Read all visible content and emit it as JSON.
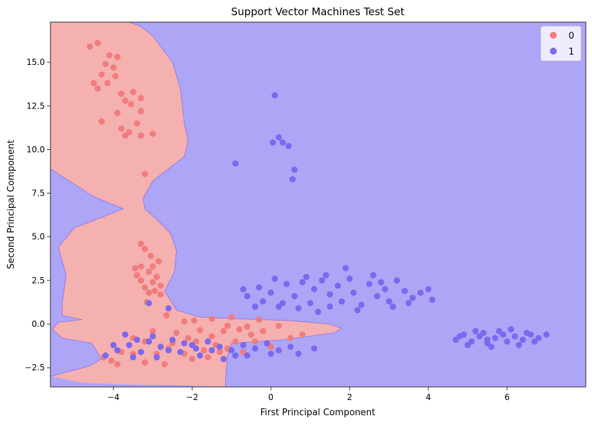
{
  "chart_data": {
    "type": "scatter",
    "title": "Support Vector Machines Test Set",
    "xlabel": "First Principal Component",
    "ylabel": "Second Principal Component",
    "xlim": [
      -5.6,
      8.0
    ],
    "ylim": [
      -3.6,
      17.3
    ],
    "xticks": [
      -4,
      -2,
      0,
      2,
      4,
      6
    ],
    "xtick_labels": [
      "−4",
      "−2",
      "0",
      "2",
      "4",
      "6"
    ],
    "yticks": [
      -2.5,
      0.0,
      2.5,
      5.0,
      7.5,
      10.0,
      12.5,
      15.0
    ],
    "ytick_labels": [
      "−2.5",
      "0.0",
      "2.5",
      "5.0",
      "7.5",
      "10.0",
      "12.5",
      "15.0"
    ],
    "grid": false,
    "legend_position": "top-right",
    "background_region_color": "#ada5f5",
    "class0_region": [
      [
        -5.6,
        17.3
      ],
      [
        -3.6,
        17.3
      ],
      [
        -3.3,
        17.05
      ],
      [
        -3.0,
        16.5
      ],
      [
        -2.5,
        15.0
      ],
      [
        -2.3,
        13.5
      ],
      [
        -2.2,
        11.5
      ],
      [
        -2.1,
        10.5
      ],
      [
        -2.2,
        9.6
      ],
      [
        -2.6,
        8.9
      ],
      [
        -3.0,
        8.2
      ],
      [
        -3.25,
        7.2
      ],
      [
        -3.2,
        6.6
      ],
      [
        -2.9,
        6.0
      ],
      [
        -2.55,
        5.2
      ],
      [
        -2.4,
        4.2
      ],
      [
        -2.45,
        3.0
      ],
      [
        -2.7,
        1.9
      ],
      [
        -2.4,
        0.8
      ],
      [
        -1.8,
        0.4
      ],
      [
        -0.8,
        0.3
      ],
      [
        0.5,
        0.2
      ],
      [
        1.5,
        0.0
      ],
      [
        1.8,
        -0.25
      ],
      [
        1.6,
        -0.5
      ],
      [
        0.3,
        -0.9
      ],
      [
        -1.0,
        -1.1
      ],
      [
        -1.1,
        -1.8
      ],
      [
        -1.15,
        -3.1
      ],
      [
        -1.15,
        -3.6
      ],
      [
        -5.6,
        -3.6
      ],
      [
        -5.6,
        -3.0
      ],
      [
        -4.6,
        -2.4
      ],
      [
        -4.3,
        -2.0
      ],
      [
        -4.55,
        -1.1
      ],
      [
        -5.3,
        -0.8
      ],
      [
        -5.55,
        -0.3
      ],
      [
        -5.4,
        0.1
      ],
      [
        -4.8,
        0.25
      ],
      [
        -5.3,
        0.5
      ],
      [
        -5.3,
        1.2
      ],
      [
        -5.2,
        2.8
      ],
      [
        -5.4,
        4.4
      ],
      [
        -5.0,
        5.5
      ],
      [
        -4.2,
        6.2
      ],
      [
        -3.75,
        6.6
      ],
      [
        -4.5,
        7.3
      ],
      [
        -5.6,
        8.9
      ]
    ],
    "class1_pocket_region": [
      [
        -5.6,
        -3.6
      ],
      [
        -5.6,
        -3.0
      ],
      [
        -4.8,
        -3.35
      ],
      [
        -3.8,
        -3.45
      ],
      [
        -2.2,
        -3.5
      ],
      [
        -1.15,
        -3.6
      ]
    ],
    "series": [
      {
        "name": "0",
        "color": "#f07c7c",
        "points": [
          [
            -4.6,
            15.9
          ],
          [
            -4.4,
            16.1
          ],
          [
            -4.1,
            15.4
          ],
          [
            -3.9,
            15.3
          ],
          [
            -4.2,
            14.9
          ],
          [
            -4.0,
            14.7
          ],
          [
            -4.3,
            14.3
          ],
          [
            -3.95,
            14.2
          ],
          [
            -4.5,
            13.8
          ],
          [
            -4.4,
            13.5
          ],
          [
            -4.15,
            13.8
          ],
          [
            -3.8,
            13.2
          ],
          [
            -3.5,
            13.3
          ],
          [
            -3.7,
            12.8
          ],
          [
            -3.3,
            12.95
          ],
          [
            -3.55,
            12.6
          ],
          [
            -3.3,
            12.2
          ],
          [
            -3.9,
            12.1
          ],
          [
            -4.3,
            11.6
          ],
          [
            -3.4,
            11.5
          ],
          [
            -3.8,
            11.2
          ],
          [
            -3.6,
            11.0
          ],
          [
            -3.3,
            10.8
          ],
          [
            -3.0,
            10.9
          ],
          [
            -3.7,
            10.8
          ],
          [
            -3.2,
            8.6
          ],
          [
            -3.3,
            4.6
          ],
          [
            -3.2,
            4.3
          ],
          [
            -3.05,
            3.9
          ],
          [
            -3.45,
            3.2
          ],
          [
            -3.3,
            3.3
          ],
          [
            -3.0,
            3.3
          ],
          [
            -2.85,
            3.6
          ],
          [
            -3.1,
            3.0
          ],
          [
            -2.9,
            2.7
          ],
          [
            -3.3,
            2.5
          ],
          [
            -3.0,
            2.4
          ],
          [
            -3.2,
            2.1
          ],
          [
            -2.8,
            2.2
          ],
          [
            -2.95,
            1.9
          ],
          [
            -2.8,
            1.7
          ],
          [
            -3.1,
            1.8
          ],
          [
            -3.4,
            2.8
          ],
          [
            -3.15,
            1.25
          ],
          [
            -2.65,
            0.5
          ],
          [
            -2.2,
            0.15
          ],
          [
            -1.95,
            0.2
          ],
          [
            -1.5,
            0.3
          ],
          [
            -1.0,
            0.4
          ],
          [
            -0.3,
            0.25
          ],
          [
            0.2,
            -0.1
          ],
          [
            -0.6,
            -0.15
          ],
          [
            -1.2,
            -0.4
          ],
          [
            -0.8,
            -0.3
          ],
          [
            -1.8,
            -0.35
          ],
          [
            -2.4,
            -0.5
          ],
          [
            -3.0,
            -0.4
          ],
          [
            -3.5,
            -0.8
          ],
          [
            -4.05,
            -2.1
          ],
          [
            -4.25,
            -1.9
          ],
          [
            -3.8,
            -1.6
          ],
          [
            -3.5,
            -1.7
          ],
          [
            -3.2,
            -2.2
          ],
          [
            -2.9,
            -1.7
          ],
          [
            -2.6,
            -1.4
          ],
          [
            -2.2,
            -1.7
          ],
          [
            -2.0,
            -2.0
          ],
          [
            -1.7,
            -1.5
          ],
          [
            -1.4,
            -1.2
          ],
          [
            -1.1,
            -1.4
          ],
          [
            -0.7,
            -1.6
          ],
          [
            -0.4,
            -1.0
          ],
          [
            0.0,
            -1.3
          ],
          [
            0.5,
            -0.8
          ],
          [
            0.8,
            -0.6
          ],
          [
            -3.9,
            -2.3
          ],
          [
            -2.7,
            -2.3
          ],
          [
            -1.6,
            -1.9
          ],
          [
            -0.9,
            -1.0
          ],
          [
            -2.1,
            -0.8
          ],
          [
            -1.5,
            -0.7
          ],
          [
            -0.2,
            -0.4
          ],
          [
            -1.1,
            -0.1
          ],
          [
            -1.9,
            -1.0
          ],
          [
            -2.5,
            -1.1
          ],
          [
            -3.2,
            -1.0
          ],
          [
            -0.5,
            -0.6
          ],
          [
            -1.3,
            -1.6
          ]
        ]
      },
      {
        "name": "1",
        "color": "#7b68ee",
        "points": [
          [
            0.1,
            13.1
          ],
          [
            0.2,
            10.7
          ],
          [
            0.05,
            10.4
          ],
          [
            0.3,
            10.4
          ],
          [
            0.45,
            10.2
          ],
          [
            -0.9,
            9.2
          ],
          [
            0.6,
            8.85
          ],
          [
            0.55,
            8.3
          ],
          [
            -3.1,
            1.2
          ],
          [
            -2.6,
            0.9
          ],
          [
            -0.7,
            2.0
          ],
          [
            -0.3,
            2.1
          ],
          [
            -0.6,
            1.6
          ],
          [
            -0.2,
            1.3
          ],
          [
            0.1,
            2.6
          ],
          [
            0.4,
            2.3
          ],
          [
            0.0,
            1.8
          ],
          [
            0.3,
            1.2
          ],
          [
            0.6,
            1.6
          ],
          [
            0.8,
            2.4
          ],
          [
            1.1,
            2.0
          ],
          [
            1.0,
            1.2
          ],
          [
            1.3,
            2.5
          ],
          [
            1.5,
            1.7
          ],
          [
            1.7,
            2.2
          ],
          [
            1.5,
            1.0
          ],
          [
            1.8,
            1.3
          ],
          [
            2.0,
            2.6
          ],
          [
            2.1,
            1.8
          ],
          [
            2.3,
            1.1
          ],
          [
            2.5,
            2.3
          ],
          [
            2.7,
            1.6
          ],
          [
            2.9,
            2.0
          ],
          [
            3.0,
            1.3
          ],
          [
            3.2,
            2.5
          ],
          [
            3.4,
            1.9
          ],
          [
            3.6,
            1.5
          ],
          [
            3.8,
            1.8
          ],
          [
            4.0,
            2.0
          ],
          [
            3.5,
            1.2
          ],
          [
            2.6,
            2.8
          ],
          [
            1.2,
            0.7
          ],
          [
            1.9,
            3.2
          ],
          [
            1.4,
            2.8
          ],
          [
            0.7,
            0.9
          ],
          [
            -0.4,
            1.0
          ],
          [
            2.2,
            0.8
          ],
          [
            3.1,
            1.0
          ],
          [
            4.1,
            1.4
          ],
          [
            0.9,
            2.7
          ],
          [
            0.2,
            1.0
          ],
          [
            2.8,
            2.4
          ],
          [
            -4.2,
            -1.8
          ],
          [
            -3.9,
            -1.5
          ],
          [
            -3.6,
            -1.2
          ],
          [
            -3.4,
            -0.9
          ],
          [
            -3.1,
            -1.0
          ],
          [
            -2.8,
            -1.3
          ],
          [
            -2.5,
            -0.9
          ],
          [
            -2.2,
            -1.1
          ],
          [
            -1.9,
            -1.4
          ],
          [
            -1.6,
            -1.0
          ],
          [
            -1.3,
            -1.3
          ],
          [
            -1.0,
            -1.5
          ],
          [
            -0.7,
            -1.2
          ],
          [
            -0.4,
            -1.4
          ],
          [
            -0.1,
            -1.1
          ],
          [
            0.2,
            -1.5
          ],
          [
            0.5,
            -1.3
          ],
          [
            0.7,
            -1.7
          ],
          [
            -3.7,
            -0.6
          ],
          [
            -3.3,
            -1.6
          ],
          [
            -2.9,
            -1.9
          ],
          [
            -2.3,
            -1.6
          ],
          [
            -1.8,
            -1.8
          ],
          [
            -1.2,
            -2.0
          ],
          [
            -0.6,
            -1.8
          ],
          [
            0.0,
            -1.7
          ],
          [
            -3.0,
            -0.7
          ],
          [
            -2.6,
            -1.5
          ],
          [
            1.1,
            -1.4
          ],
          [
            -4.0,
            -1.2
          ],
          [
            -1.5,
            -1.5
          ],
          [
            -0.9,
            -1.8
          ],
          [
            -3.5,
            -1.9
          ],
          [
            -2.0,
            -1.2
          ],
          [
            4.7,
            -0.9
          ],
          [
            4.9,
            -0.6
          ],
          [
            5.1,
            -1.0
          ],
          [
            5.3,
            -0.7
          ],
          [
            5.5,
            -0.9
          ],
          [
            5.4,
            -0.5
          ],
          [
            5.7,
            -0.8
          ],
          [
            5.9,
            -0.6
          ],
          [
            6.0,
            -1.0
          ],
          [
            6.2,
            -0.7
          ],
          [
            6.4,
            -0.9
          ],
          [
            6.6,
            -0.6
          ],
          [
            6.8,
            -0.8
          ],
          [
            7.0,
            -0.6
          ],
          [
            5.0,
            -1.2
          ],
          [
            5.6,
            -1.3
          ],
          [
            6.1,
            -0.3
          ],
          [
            6.3,
            -1.2
          ],
          [
            5.8,
            -0.4
          ],
          [
            5.2,
            -0.4
          ],
          [
            6.7,
            -1.0
          ],
          [
            5.5,
            -1.1
          ],
          [
            4.8,
            -0.7
          ],
          [
            6.5,
            -0.5
          ]
        ]
      }
    ]
  }
}
